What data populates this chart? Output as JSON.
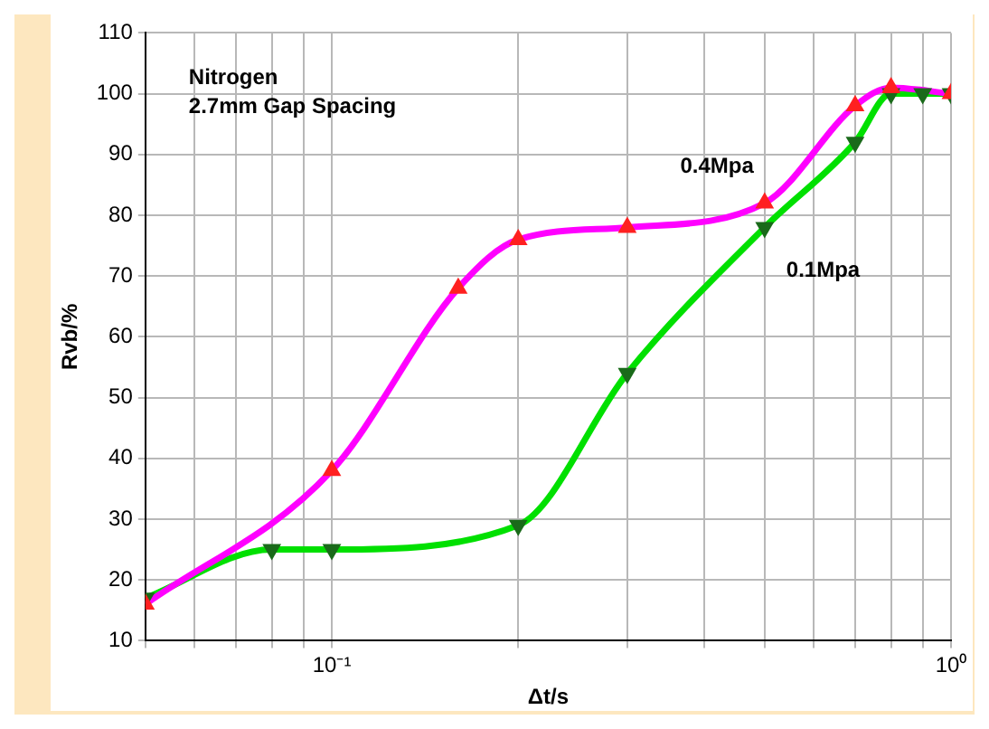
{
  "chart_data": {
    "type": "line",
    "xlabel": "Δt/s",
    "ylabel": "Rvb/%",
    "log": "x",
    "grid": true,
    "legend": false,
    "xlim": [
      0.05,
      1
    ],
    "xticks": [
      {
        "value": 0.05,
        "label": null
      },
      {
        "value": 0.06,
        "label": null
      },
      {
        "value": 0.07,
        "label": null
      },
      {
        "value": 0.08,
        "label": null
      },
      {
        "value": 0.09,
        "label": null
      },
      {
        "value": 0.1,
        "label": "10⁻¹"
      },
      {
        "value": 0.2,
        "label": null
      },
      {
        "value": 0.3,
        "label": null
      },
      {
        "value": 0.4,
        "label": null
      },
      {
        "value": 0.5,
        "label": null
      },
      {
        "value": 0.6,
        "label": null
      },
      {
        "value": 0.7,
        "label": null
      },
      {
        "value": 0.8,
        "label": null
      },
      {
        "value": 0.9,
        "label": null
      },
      {
        "value": 1,
        "label": "10⁰"
      }
    ],
    "ylim": [
      10,
      110
    ],
    "yticks": [
      10,
      20,
      30,
      40,
      50,
      60,
      70,
      80,
      90,
      100,
      110
    ],
    "series": [
      {
        "name": "0.4Mpa",
        "color": "#ff00ff",
        "marker": "none",
        "x": [
          0.05,
          0.1,
          0.16,
          0.2,
          0.3,
          0.5,
          0.7,
          0.8,
          1
        ],
        "values": [
          16,
          38,
          68,
          76,
          78,
          82,
          98,
          101,
          100
        ]
      },
      {
        "name": "0.1Mpa",
        "color": "#00e000",
        "marker": "none",
        "x": [
          0.05,
          0.08,
          0.1,
          0.2,
          0.3,
          0.5,
          0.7,
          0.8,
          0.9,
          1
        ],
        "values": [
          17,
          25,
          25,
          29,
          54,
          78,
          92,
          100,
          100,
          100
        ]
      },
      {
        "type": "scatter",
        "color": "#ff2020",
        "marker": "triangle",
        "x": [
          0.05,
          0.1,
          0.16,
          0.2,
          0.3,
          0.5,
          0.7,
          0.8,
          1
        ],
        "values": [
          16,
          38,
          68,
          76,
          78,
          82,
          98,
          101,
          100
        ]
      },
      {
        "type": "scatter",
        "color": "#1a6a1a",
        "marker": "triangle",
        "x": [
          0.05,
          0.08,
          0.1,
          0.2,
          0.3,
          0.5,
          0.7,
          0.8,
          0.9,
          1
        ],
        "values": [
          17,
          25,
          25,
          29,
          54,
          78,
          92,
          100,
          100,
          100
        ]
      }
    ],
    "annotations": [
      "Nitrogen",
      "2.7mm Gap Spacing"
    ]
  }
}
